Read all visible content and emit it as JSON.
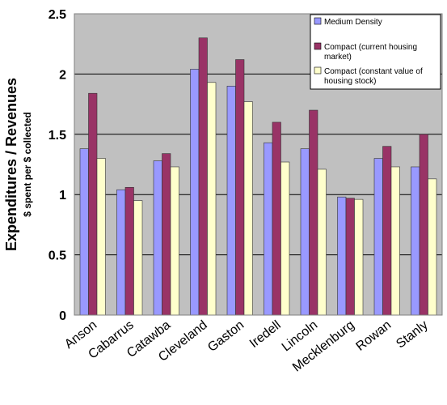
{
  "chart_data": {
    "type": "bar",
    "title": "",
    "ylabel": "Expenditures / Revenues",
    "ylabel_sub": "$ spent per $ collected",
    "xlabel": "",
    "ylim": [
      0,
      2.5
    ],
    "yticks": [
      "0",
      "0.5",
      "1",
      "1.5",
      "2",
      "2.5"
    ],
    "grid": true,
    "legend_position": "top-right",
    "categories": [
      "Anson",
      "Cabarrus",
      "Catawba",
      "Cleveland",
      "Gaston",
      "Iredell",
      "Lincoln",
      "Mecklenburg",
      "Rowan",
      "Stanly"
    ],
    "series": [
      {
        "name": "Medium Density",
        "color": "#9999ff",
        "values": [
          1.38,
          1.04,
          1.28,
          2.04,
          1.9,
          1.43,
          1.38,
          0.98,
          1.3,
          1.23
        ]
      },
      {
        "name": "Compact (current housing market)",
        "color": "#993366",
        "values": [
          1.84,
          1.06,
          1.34,
          2.3,
          2.12,
          1.6,
          1.7,
          0.97,
          1.4,
          1.5
        ]
      },
      {
        "name": "Compact (constant value of housing stock)",
        "color": "#ffffcc",
        "values": [
          1.3,
          0.95,
          1.23,
          1.93,
          1.77,
          1.27,
          1.21,
          0.96,
          1.23,
          1.13
        ]
      }
    ],
    "legend_lines": [
      [
        "Medium Density"
      ],
      [
        "Compact (current housing",
        "market)"
      ],
      [
        "Compact (constant value of",
        "housing stock)"
      ]
    ],
    "plot_background": "#c0c0c0"
  }
}
